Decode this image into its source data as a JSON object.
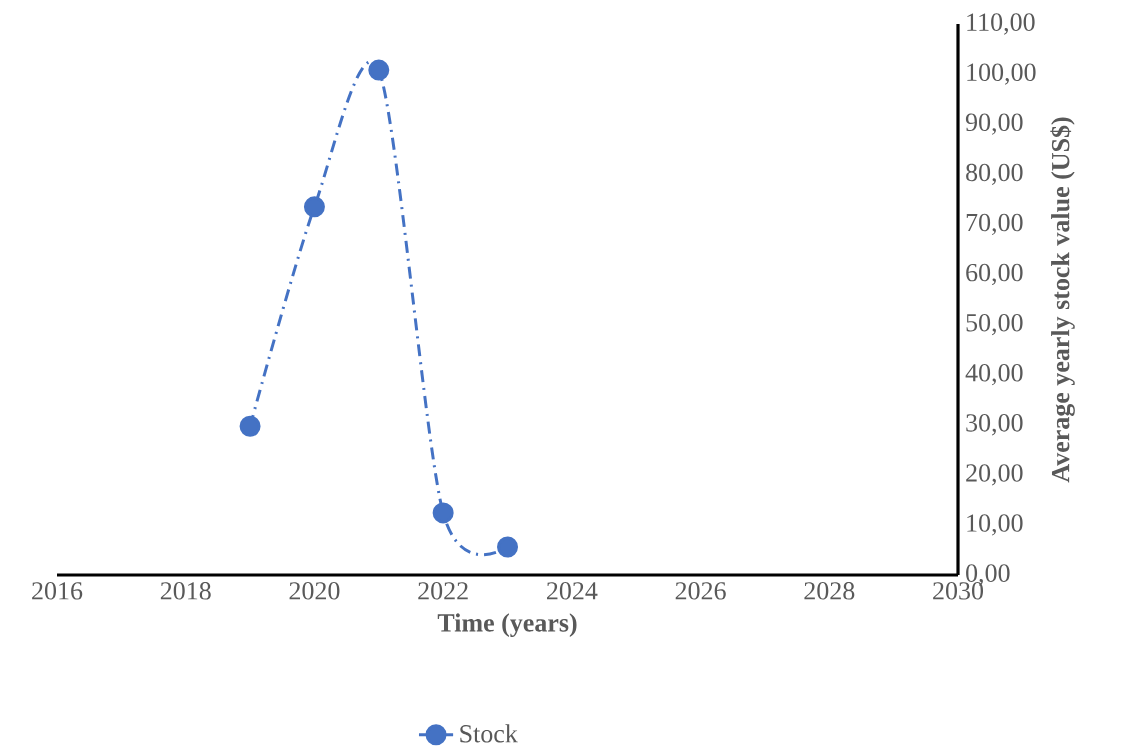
{
  "chart_data": {
    "type": "line",
    "xlabel": "Time (years)",
    "ylabel": "Average yearly stock value (US$)",
    "series": [
      {
        "name": "Stock",
        "color": "#4472c4",
        "x": [
          2019,
          2020,
          2021,
          2022,
          2023
        ],
        "values": [
          29.7,
          73.5,
          100.8,
          12.4,
          5.6
        ]
      }
    ],
    "xlim": [
      2016,
      2030
    ],
    "xticks": [
      2016,
      2018,
      2020,
      2022,
      2024,
      2026,
      2028,
      2030
    ],
    "ylim": [
      0,
      110
    ],
    "yticks": [
      {
        "value": 0,
        "label": "0,00"
      },
      {
        "value": 10,
        "label": "10,00"
      },
      {
        "value": 20,
        "label": "20,00"
      },
      {
        "value": 30,
        "label": "30,00"
      },
      {
        "value": 40,
        "label": "40,00"
      },
      {
        "value": 50,
        "label": "50,00"
      },
      {
        "value": 60,
        "label": "60,00"
      },
      {
        "value": 70,
        "label": "70,00"
      },
      {
        "value": 80,
        "label": "80,00"
      },
      {
        "value": 90,
        "label": "90,00"
      },
      {
        "value": 100,
        "label": "100,00"
      },
      {
        "value": 110,
        "label": "110,00"
      }
    ],
    "grid": false,
    "legend": "bottom",
    "marker": "circle",
    "line_style": "dashed"
  }
}
